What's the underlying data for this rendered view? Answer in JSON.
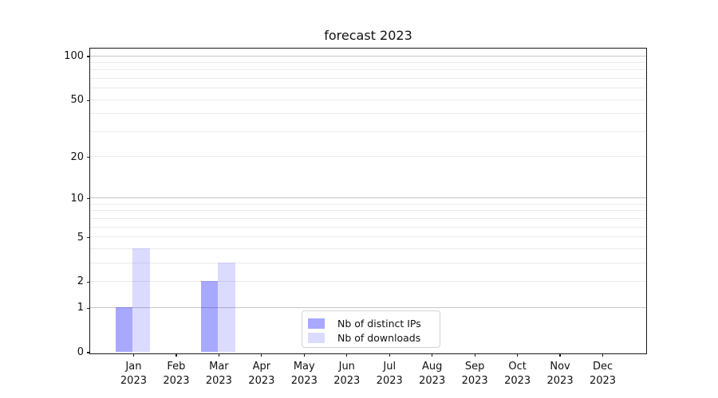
{
  "chart_data": {
    "type": "bar",
    "title": "forecast 2023",
    "categories": [
      {
        "month": "Jan",
        "year": "2023"
      },
      {
        "month": "Feb",
        "year": "2023"
      },
      {
        "month": "Mar",
        "year": "2023"
      },
      {
        "month": "Apr",
        "year": "2023"
      },
      {
        "month": "May",
        "year": "2023"
      },
      {
        "month": "Jun",
        "year": "2023"
      },
      {
        "month": "Jul",
        "year": "2023"
      },
      {
        "month": "Aug",
        "year": "2023"
      },
      {
        "month": "Sep",
        "year": "2023"
      },
      {
        "month": "Oct",
        "year": "2023"
      },
      {
        "month": "Nov",
        "year": "2023"
      },
      {
        "month": "Dec",
        "year": "2023"
      }
    ],
    "series": [
      {
        "name": "Nb of distinct IPs",
        "color": "rgba(0,0,255,0.34)",
        "color_on_white_hex": "#a9a9f8",
        "values": [
          1,
          0,
          2,
          0,
          0,
          0,
          0,
          0,
          0,
          0,
          0,
          0
        ]
      },
      {
        "name": "Nb of downloads",
        "color": "rgba(0,0,255,0.14)",
        "color_on_white_hex": "#dcdcf9",
        "values": [
          4,
          0,
          3,
          0,
          0,
          0,
          0,
          0,
          0,
          0,
          0,
          0
        ]
      }
    ],
    "xlabel": "",
    "ylabel": "",
    "yscale": "log1p",
    "yticks": [
      0,
      1,
      2,
      5,
      10,
      20,
      50,
      100
    ],
    "ylim": [
      0,
      112
    ],
    "grid": {
      "major_values": [
        1,
        10,
        100
      ],
      "minor_values": [
        2,
        3,
        4,
        5,
        6,
        7,
        8,
        9,
        20,
        30,
        40,
        50,
        60,
        70,
        80,
        90
      ],
      "major_color": "#c6c6c6",
      "minor_color": "#ebebeb"
    },
    "legend": {
      "position": "lower-center"
    },
    "spine_color": "#1a1a1a",
    "text_color": "#111111"
  }
}
